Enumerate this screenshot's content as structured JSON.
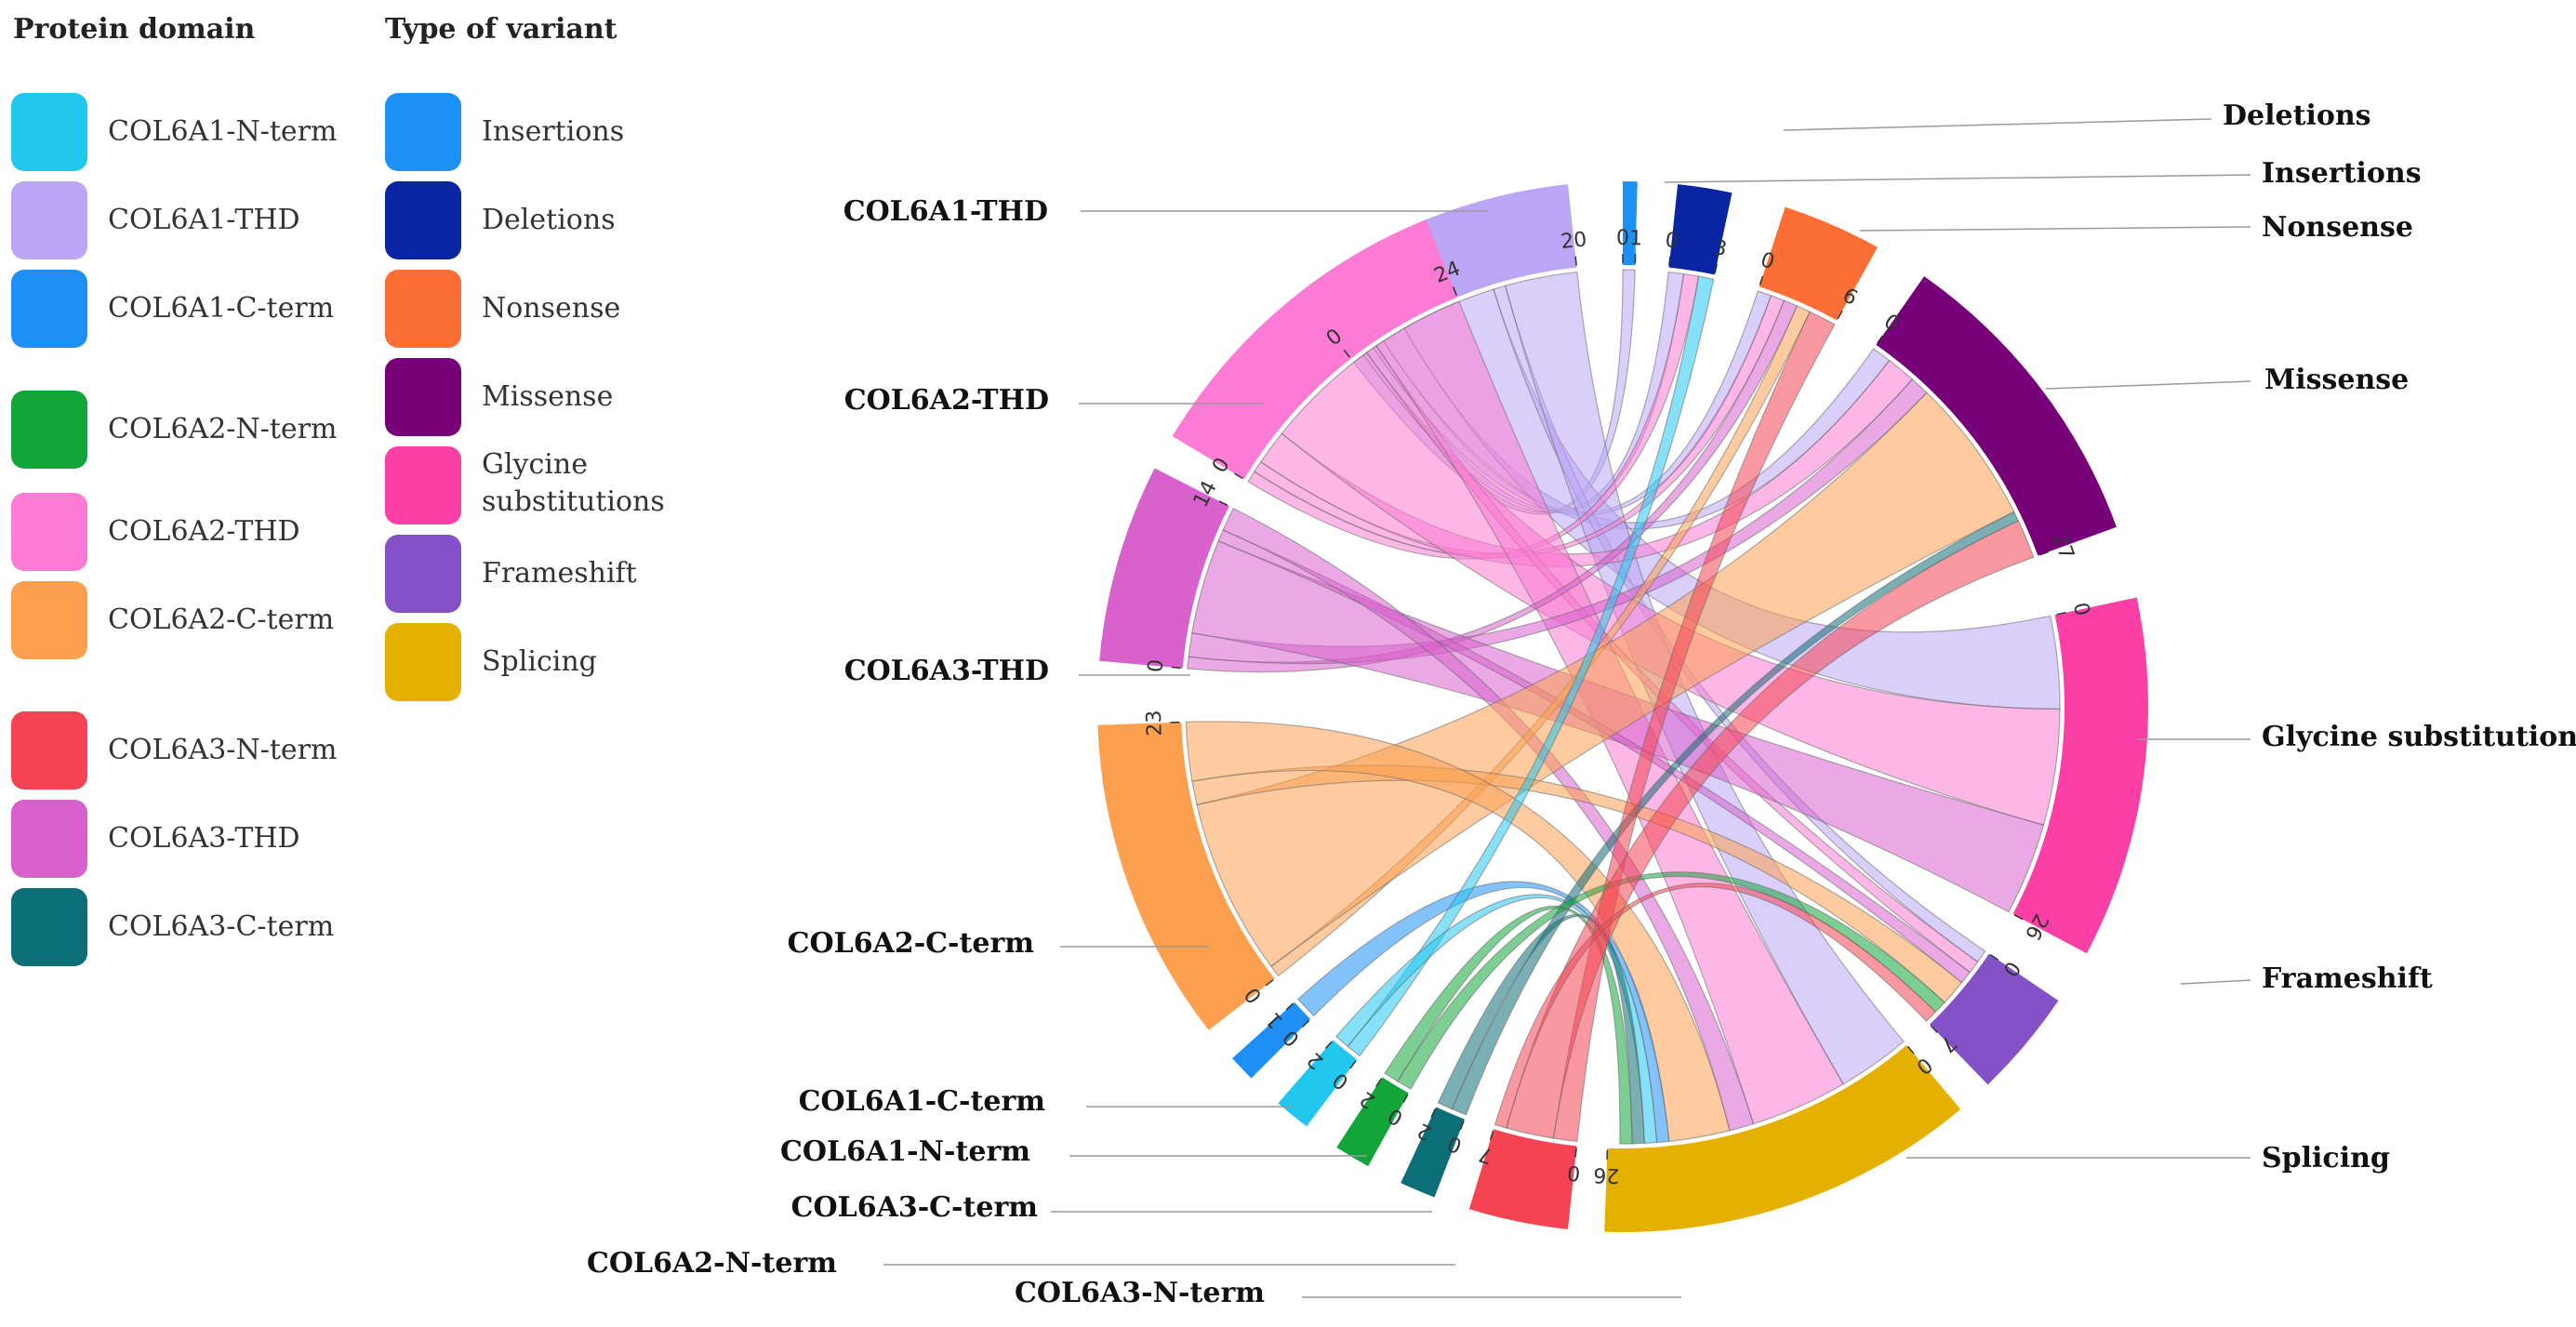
{
  "legend_domain": {
    "title": "Protein domain",
    "items": [
      {
        "label": "COL6A1-N-term",
        "color": "#22C7F0"
      },
      {
        "label": "COL6A1-THD",
        "color": "#BBA6F5"
      },
      {
        "label": "COL6A1-C-term",
        "color": "#1E8FF5"
      },
      {
        "label": "COL6A2-N-term",
        "color": "#12A53A"
      },
      {
        "label": "COL6A2-THD",
        "color": "#FC7BD4"
      },
      {
        "label": "COL6A2-C-term",
        "color": "#FCA050"
      },
      {
        "label": "COL6A3-N-term",
        "color": "#F44352"
      },
      {
        "label": "COL6A3-THD",
        "color": "#D861CD"
      },
      {
        "label": "COL6A3-C-term",
        "color": "#0C6E77"
      }
    ]
  },
  "legend_variant": {
    "title": "Type of variant",
    "items": [
      {
        "label": "Insertions",
        "color": "#1B90F5"
      },
      {
        "label": "Deletions",
        "color": "#0A25A3"
      },
      {
        "label": "Nonsense",
        "color": "#FC6E34"
      },
      {
        "label": "Missense",
        "color": "#77007A"
      },
      {
        "label": "Glycine\nsubstitutions",
        "color": "#FC3FA6"
      },
      {
        "label": "Frameshift",
        "color": "#8352C7"
      },
      {
        "label": "Splicing",
        "color": "#E6B000"
      }
    ]
  },
  "chart_data": {
    "type": "chord",
    "title": "",
    "segments": [
      {
        "name": "COL6A1-THD",
        "label": "COL6A1-THD",
        "color": "#BBA6F5",
        "max": 20,
        "ticks": [
          {
            "v": 0,
            "t": "0"
          },
          {
            "v": 20,
            "t": "20"
          }
        ]
      },
      {
        "name": "Insertions",
        "label": "Insertions",
        "color": "#1B90F5",
        "max": 1,
        "ticks": [
          {
            "v": 0,
            "t": "0"
          },
          {
            "v": 1,
            "t": "1"
          }
        ]
      },
      {
        "name": "Deletions",
        "label": "Deletions",
        "color": "#0A25A3",
        "max": 3,
        "ticks": [
          {
            "v": 0,
            "t": "0"
          },
          {
            "v": 3,
            "t": "3"
          }
        ]
      },
      {
        "name": "Nonsense",
        "label": "Nonsense",
        "color": "#FC6E34",
        "max": 6,
        "ticks": [
          {
            "v": 0,
            "t": "0"
          },
          {
            "v": 6,
            "t": "6"
          }
        ]
      },
      {
        "name": "Missense",
        "label": "Missense",
        "color": "#77007A",
        "max": 27,
        "ticks": [
          {
            "v": 0,
            "t": "0"
          },
          {
            "v": 27,
            "t": "27"
          }
        ]
      },
      {
        "name": "Glycine substitutions",
        "label": "Glycine substitutions",
        "color": "#FC3FA6",
        "max": 26,
        "ticks": [
          {
            "v": 0,
            "t": "0"
          },
          {
            "v": 26,
            "t": "26"
          }
        ]
      },
      {
        "name": "Frameshift",
        "label": "Frameshift",
        "color": "#8352C7",
        "max": 7,
        "ticks": [
          {
            "v": 0,
            "t": "0"
          },
          {
            "v": 7,
            "t": "7"
          }
        ]
      },
      {
        "name": "Splicing",
        "label": "Splicing",
        "color": "#E6B000",
        "max": 26,
        "ticks": [
          {
            "v": 0,
            "t": "0"
          },
          {
            "v": 26,
            "t": "26"
          }
        ]
      },
      {
        "name": "COL6A3-N-term",
        "label": "COL6A3-N-term",
        "color": "#F44352",
        "max": 7,
        "ticks": [
          {
            "v": 0,
            "t": "0"
          },
          {
            "v": 7,
            "t": "7"
          }
        ]
      },
      {
        "name": "COL6A3-C-term",
        "label": "COL6A3-C-term",
        "color": "#0C6E77",
        "max": 2,
        "ticks": [
          {
            "v": 0,
            "t": "0"
          },
          {
            "v": 2,
            "t": "2"
          }
        ]
      },
      {
        "name": "COL6A2-N-term",
        "label": "COL6A2-N-term",
        "color": "#12A53A",
        "max": 2,
        "ticks": [
          {
            "v": 0,
            "t": "0"
          },
          {
            "v": 2,
            "t": "2"
          }
        ]
      },
      {
        "name": "COL6A1-N-term",
        "label": "COL6A1-N-term",
        "color": "#22C7F0",
        "max": 2,
        "ticks": [
          {
            "v": 0,
            "t": "0"
          },
          {
            "v": 2,
            "t": "2"
          }
        ]
      },
      {
        "name": "COL6A1-C-term",
        "label": "COL6A1-C-term",
        "color": "#1E8FF5",
        "max": 1,
        "ticks": [
          {
            "v": 0,
            "t": "0"
          },
          {
            "v": 1,
            "t": "1"
          }
        ]
      },
      {
        "name": "COL6A2-C-term",
        "label": "COL6A2-C-term",
        "color": "#FCA050",
        "max": 23,
        "ticks": [
          {
            "v": 0,
            "t": "0"
          },
          {
            "v": 23,
            "t": "23"
          }
        ]
      },
      {
        "name": "COL6A3-THD",
        "label": "COL6A3-THD",
        "color": "#D861CD",
        "max": 14,
        "ticks": [
          {
            "v": 0,
            "t": "0"
          },
          {
            "v": 14,
            "t": "14"
          }
        ]
      },
      {
        "name": "COL6A2-THD",
        "label": "COL6A2-THD",
        "color": "#FC7BD4",
        "max": 24,
        "ticks": [
          {
            "v": 0,
            "t": "0"
          },
          {
            "v": 24,
            "t": "24"
          }
        ]
      }
    ],
    "links": [
      {
        "source": "COL6A1-THD",
        "target": "Insertions",
        "value": 1
      },
      {
        "source": "COL6A1-THD",
        "target": "Deletions",
        "value": 1
      },
      {
        "source": "COL6A1-THD",
        "target": "Nonsense",
        "value": 1
      },
      {
        "source": "COL6A1-THD",
        "target": "Missense",
        "value": 2
      },
      {
        "source": "COL6A1-THD",
        "target": "Glycine substitutions",
        "value": 8
      },
      {
        "source": "COL6A1-THD",
        "target": "Frameshift",
        "value": 1
      },
      {
        "source": "COL6A1-THD",
        "target": "Splicing",
        "value": 6
      },
      {
        "source": "COL6A2-THD",
        "target": "Deletions",
        "value": 1
      },
      {
        "source": "COL6A2-THD",
        "target": "Nonsense",
        "value": 1
      },
      {
        "source": "COL6A2-THD",
        "target": "Missense",
        "value": 3
      },
      {
        "source": "COL6A2-THD",
        "target": "Glycine substitutions",
        "value": 10
      },
      {
        "source": "COL6A2-THD",
        "target": "Frameshift",
        "value": 1
      },
      {
        "source": "COL6A2-THD",
        "target": "Splicing",
        "value": 8
      },
      {
        "source": "COL6A3-THD",
        "target": "Nonsense",
        "value": 1
      },
      {
        "source": "COL6A3-THD",
        "target": "Missense",
        "value": 2
      },
      {
        "source": "COL6A3-THD",
        "target": "Glycine substitutions",
        "value": 8
      },
      {
        "source": "COL6A3-THD",
        "target": "Frameshift",
        "value": 1
      },
      {
        "source": "COL6A3-THD",
        "target": "Splicing",
        "value": 2
      },
      {
        "source": "COL6A2-C-term",
        "target": "Nonsense",
        "value": 1
      },
      {
        "source": "COL6A2-C-term",
        "target": "Missense",
        "value": 15
      },
      {
        "source": "COL6A2-C-term",
        "target": "Frameshift",
        "value": 2
      },
      {
        "source": "COL6A2-C-term",
        "target": "Splicing",
        "value": 5
      },
      {
        "source": "COL6A1-C-term",
        "target": "Splicing",
        "value": 1
      },
      {
        "source": "COL6A1-N-term",
        "target": "Deletions",
        "value": 1
      },
      {
        "source": "COL6A1-N-term",
        "target": "Splicing",
        "value": 1
      },
      {
        "source": "COL6A3-C-term",
        "target": "Missense",
        "value": 1
      },
      {
        "source": "COL6A3-C-term",
        "target": "Splicing",
        "value": 1
      },
      {
        "source": "COL6A2-N-term",
        "target": "Frameshift",
        "value": 1
      },
      {
        "source": "COL6A2-N-term",
        "target": "Splicing",
        "value": 1
      },
      {
        "source": "COL6A3-N-term",
        "target": "Nonsense",
        "value": 2
      },
      {
        "source": "COL6A3-N-term",
        "target": "Missense",
        "value": 4
      },
      {
        "source": "COL6A3-N-term",
        "target": "Frameshift",
        "value": 1
      }
    ]
  }
}
